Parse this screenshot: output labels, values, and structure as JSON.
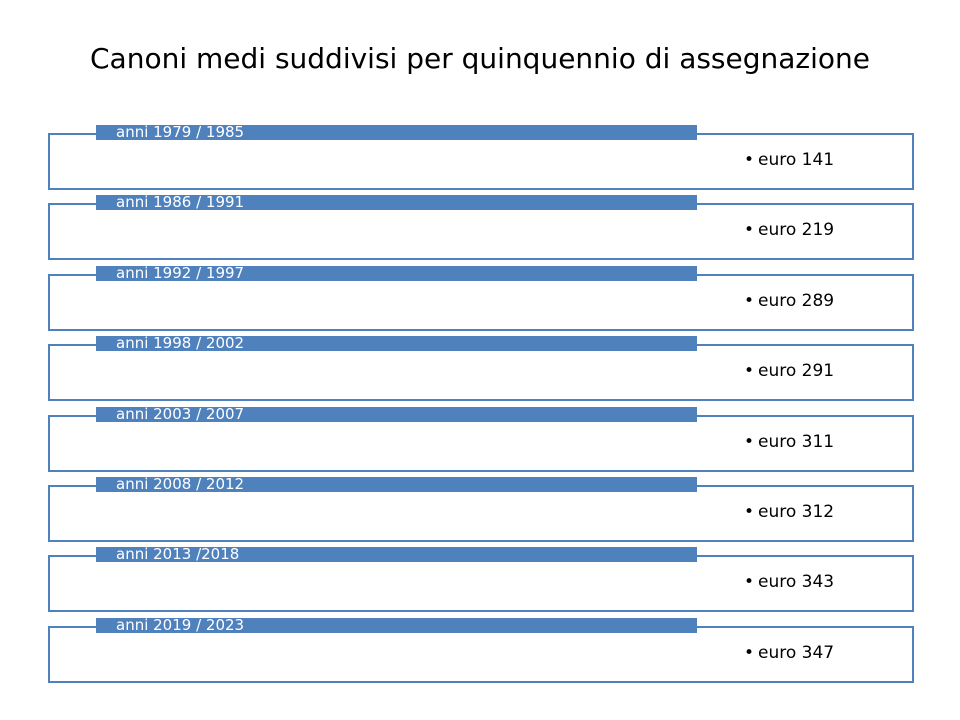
{
  "title": "Canoni medi suddivisi per quinquennio di assegnazione",
  "items": [
    {
      "label": "anni 1979 / 1985",
      "value": "euro 141"
    },
    {
      "label": "anni 1986 / 1991",
      "value": "euro 219"
    },
    {
      "label": "anni 1992 / 1997",
      "value": "euro 289"
    },
    {
      "label": "anni 1998 / 2002",
      "value": "euro 291"
    },
    {
      "label": "anni 2003 / 2007",
      "value": "euro 311"
    },
    {
      "label": "anni 2008 / 2012",
      "value": "euro 312"
    },
    {
      "label": "anni 2013 /2018",
      "value": "euro 343"
    },
    {
      "label": "anni 2019 / 2023",
      "value": "euro 347"
    }
  ]
}
